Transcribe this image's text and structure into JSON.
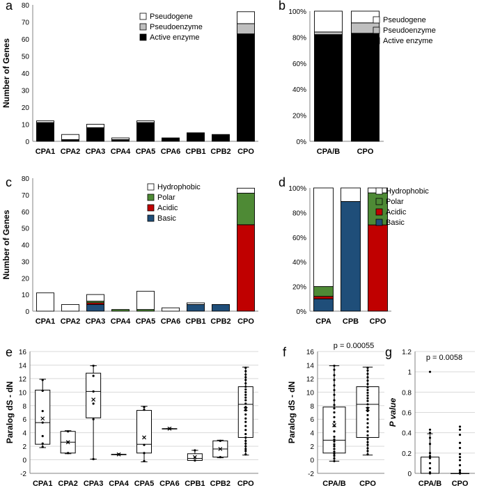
{
  "colors": {
    "active": "#000000",
    "pseudoenzyme": "#bfbfbf",
    "pseudogene": "#ffffff",
    "hydrophobic": "#ffffff",
    "polar": "#4e8a35",
    "acidic": "#c00000",
    "basic": "#1f4e79",
    "axis": "#808080",
    "grid": "#d9d9d9"
  },
  "chart_data": [
    {
      "panel": "a",
      "type": "bar",
      "stacked": true,
      "title": "",
      "xlabel": "",
      "ylabel": "Number of Genes",
      "ylim": [
        0,
        80
      ],
      "yticks": [
        "0",
        "10",
        "20",
        "30",
        "40",
        "50",
        "60",
        "70",
        "80"
      ],
      "categories": [
        "CPA1",
        "CPA2",
        "CPA3",
        "CPA4",
        "CPA5",
        "CPA6",
        "CPB1",
        "CPB2",
        "CPO"
      ],
      "series": [
        {
          "name": "Active enzyme",
          "color": "active",
          "values": [
            11,
            1,
            8,
            1,
            11,
            2,
            5,
            4,
            63
          ]
        },
        {
          "name": "Pseudoenzyme",
          "color": "pseudoenzyme",
          "values": [
            0,
            0,
            0,
            0,
            0,
            0,
            0,
            0,
            6
          ]
        },
        {
          "name": "Pseudogene",
          "color": "pseudogene",
          "values": [
            1,
            3,
            2,
            1,
            1,
            0,
            0,
            0,
            7
          ]
        }
      ],
      "legend": [
        "Pseudogene",
        "Pseudoenzyme",
        "Active enzyme"
      ]
    },
    {
      "panel": "b",
      "type": "bar",
      "stacked": true,
      "percent": true,
      "title": "",
      "xlabel": "",
      "ylabel": "",
      "ylim": [
        0,
        100
      ],
      "yticks": [
        "0%",
        "20%",
        "40%",
        "60%",
        "80%",
        "100%"
      ],
      "categories": [
        "CPA/B",
        "CPO"
      ],
      "series": [
        {
          "name": "Active enzyme",
          "color": "active",
          "values": [
            82,
            83
          ]
        },
        {
          "name": "Pseudoenzyme",
          "color": "pseudoenzyme",
          "values": [
            2,
            8
          ]
        },
        {
          "name": "Pseudogene",
          "color": "pseudogene",
          "values": [
            16,
            9
          ]
        }
      ],
      "legend": [
        "Pseudogene",
        "Pseudoenzyme",
        "Active enzyme"
      ]
    },
    {
      "panel": "c",
      "type": "bar",
      "stacked": true,
      "title": "",
      "xlabel": "",
      "ylabel": "Number of Genes",
      "ylim": [
        0,
        80
      ],
      "yticks": [
        "0",
        "10",
        "20",
        "30",
        "40",
        "50",
        "60",
        "70",
        "80"
      ],
      "categories": [
        "CPA1",
        "CPA2",
        "CPA3",
        "CPA4",
        "CPA5",
        "CPA6",
        "CPB1",
        "CPB2",
        "CPO"
      ],
      "series": [
        {
          "name": "Basic",
          "color": "basic",
          "values": [
            0,
            0,
            4,
            0,
            0,
            0,
            4,
            4,
            0
          ]
        },
        {
          "name": "Acidic",
          "color": "acidic",
          "values": [
            0,
            0,
            1,
            0,
            0,
            0,
            0,
            0,
            52
          ]
        },
        {
          "name": "Polar",
          "color": "polar",
          "values": [
            0,
            0,
            1,
            1,
            1,
            0,
            0,
            0,
            19
          ]
        },
        {
          "name": "Hydrophobic",
          "color": "hydrophobic",
          "values": [
            11,
            4,
            4,
            0,
            11,
            2,
            1,
            0,
            3
          ]
        }
      ],
      "legend": [
        "Hydrophobic",
        "Polar",
        "Acidic",
        "Basic"
      ]
    },
    {
      "panel": "d",
      "type": "bar",
      "stacked": true,
      "percent": true,
      "title": "",
      "xlabel": "",
      "ylabel": "",
      "ylim": [
        0,
        100
      ],
      "yticks": [
        "0%",
        "20%",
        "40%",
        "60%",
        "80%",
        "100%"
      ],
      "categories": [
        "CPA",
        "CPB",
        "CPO"
      ],
      "series": [
        {
          "name": "Basic",
          "color": "basic",
          "values": [
            10,
            89,
            0
          ]
        },
        {
          "name": "Acidic",
          "color": "acidic",
          "values": [
            2,
            0,
            70
          ]
        },
        {
          "name": "Polar",
          "color": "polar",
          "values": [
            8,
            0,
            26
          ]
        },
        {
          "name": "Hydrophobic",
          "color": "hydrophobic",
          "values": [
            80,
            11,
            4
          ]
        }
      ],
      "legend": [
        "Hydrophobic",
        "Polar",
        "Acidic",
        "Basic"
      ]
    },
    {
      "panel": "e",
      "type": "box",
      "title": "",
      "xlabel": "",
      "ylabel": "Paralog dS - dN",
      "ylim": [
        -2,
        16
      ],
      "yticks": [
        "-2",
        "0",
        "2",
        "4",
        "6",
        "8",
        "10",
        "12",
        "14",
        "16"
      ],
      "categories": [
        "CPA1",
        "CPA2",
        "CPA3",
        "CPA4",
        "CPA5",
        "CPA6",
        "CPB1",
        "CPB2",
        "CPO"
      ],
      "boxes": [
        {
          "min": 1.8,
          "q1": 2.3,
          "median": 5.5,
          "q3": 10.3,
          "max": 11.9,
          "mean": 6.1,
          "points": [
            1.9,
            2.4,
            3.5,
            5.5,
            7.2,
            10.2,
            11.8
          ]
        },
        {
          "min": 0.9,
          "q1": 1.0,
          "median": 2.6,
          "q3": 4.2,
          "max": 4.3,
          "mean": 2.6,
          "points": [
            1.0,
            2.6,
            4.2
          ]
        },
        {
          "min": 0.1,
          "q1": 6.2,
          "median": 10.1,
          "q3": 12.8,
          "max": 13.9,
          "mean": 8.9,
          "points": [
            0.1,
            6.0,
            8.3,
            10.1,
            12.4,
            13.9
          ]
        },
        {
          "min": 0.8,
          "q1": 0.8,
          "median": 0.8,
          "q3": 0.8,
          "max": 0.8,
          "mean": 0.8,
          "points": [
            0.8
          ]
        },
        {
          "min": -0.3,
          "q1": 1.0,
          "median": 2.3,
          "q3": 7.3,
          "max": 7.9,
          "mean": 3.3,
          "points": [
            -0.2,
            1.0,
            2.2,
            7.4,
            7.8
          ]
        },
        {
          "min": 4.6,
          "q1": 4.6,
          "median": 4.6,
          "q3": 4.6,
          "max": 4.6,
          "mean": 4.6,
          "points": [
            4.6
          ]
        },
        {
          "min": -0.1,
          "q1": -0.1,
          "median": 0.2,
          "q3": 0.9,
          "max": 1.4,
          "mean": 0.4,
          "points": [
            -0.1,
            0.3,
            1.4
          ]
        },
        {
          "min": 0.3,
          "q1": 0.4,
          "median": 1.6,
          "q3": 2.8,
          "max": 2.9,
          "mean": 1.6,
          "points": [
            0.4,
            2.8
          ]
        },
        {
          "min": 0.7,
          "q1": 3.3,
          "median": 8.2,
          "q3": 10.8,
          "max": 13.7,
          "mean": 7.5,
          "points": [
            0.8,
            1.3,
            1.6,
            2.0,
            2.4,
            2.8,
            3.3,
            3.8,
            4.4,
            5.0,
            5.6,
            6.1,
            6.7,
            7.3,
            7.8,
            8.3,
            8.8,
            9.2,
            9.6,
            10.0,
            10.4,
            10.8,
            11.3,
            11.8,
            12.2,
            12.6,
            13.1,
            13.6
          ]
        }
      ]
    },
    {
      "panel": "f",
      "type": "box",
      "title": "",
      "xlabel": "",
      "ylabel": "Paralog dS - dN",
      "annotation": "p = 0.00055",
      "ylim": [
        -2,
        16
      ],
      "yticks": [
        "-2",
        "0",
        "2",
        "4",
        "6",
        "8",
        "10",
        "12",
        "14",
        "16"
      ],
      "categories": [
        "CPA/B",
        "CPO"
      ],
      "boxes": [
        {
          "min": -0.2,
          "q1": 1.0,
          "median": 2.9,
          "q3": 7.8,
          "max": 13.9,
          "mean": 5.1,
          "points": [
            -0.2,
            0.2,
            0.6,
            0.9,
            1.2,
            1.6,
            2.0,
            2.3,
            2.7,
            3.0,
            3.4,
            4.2,
            5.0,
            5.6,
            6.3,
            7.0,
            7.6,
            8.1,
            8.8,
            9.6,
            10.3,
            11.0,
            11.8,
            12.5,
            13.3,
            13.9
          ]
        },
        {
          "min": 0.7,
          "q1": 3.3,
          "median": 8.2,
          "q3": 10.8,
          "max": 13.7,
          "mean": 7.5,
          "points": [
            0.8,
            1.3,
            1.7,
            2.2,
            2.6,
            3.1,
            3.6,
            4.2,
            4.8,
            5.4,
            6.0,
            6.6,
            7.2,
            7.7,
            8.2,
            8.7,
            9.1,
            9.5,
            9.9,
            10.3,
            10.7,
            11.2,
            11.7,
            12.2,
            12.7,
            13.2,
            13.6
          ]
        }
      ]
    },
    {
      "panel": "g",
      "type": "bar",
      "title": "",
      "xlabel": "",
      "ylabel": "P value",
      "annotation": "p = 0.0058",
      "ylim": [
        0,
        1.2
      ],
      "yticks": [
        "0",
        "0.2",
        "0.4",
        "0.6",
        "0.8",
        "1",
        "1.2"
      ],
      "categories": [
        "CPA/B",
        "CPO"
      ],
      "values": [
        0.16,
        0.0
      ],
      "error_upper": [
        0.39,
        0.0
      ],
      "points": [
        [
          0.0,
          0.0,
          0.01,
          0.05,
          0.1,
          0.15,
          0.17,
          0.2,
          0.29,
          0.35,
          0.4,
          0.43,
          1.0
        ],
        [
          0.0,
          0.0,
          0.0,
          0.0,
          0.0,
          0.0,
          0.01,
          0.03,
          0.08,
          0.13,
          0.16,
          0.19,
          0.25,
          0.3,
          0.38,
          0.43,
          0.46
        ]
      ]
    }
  ]
}
